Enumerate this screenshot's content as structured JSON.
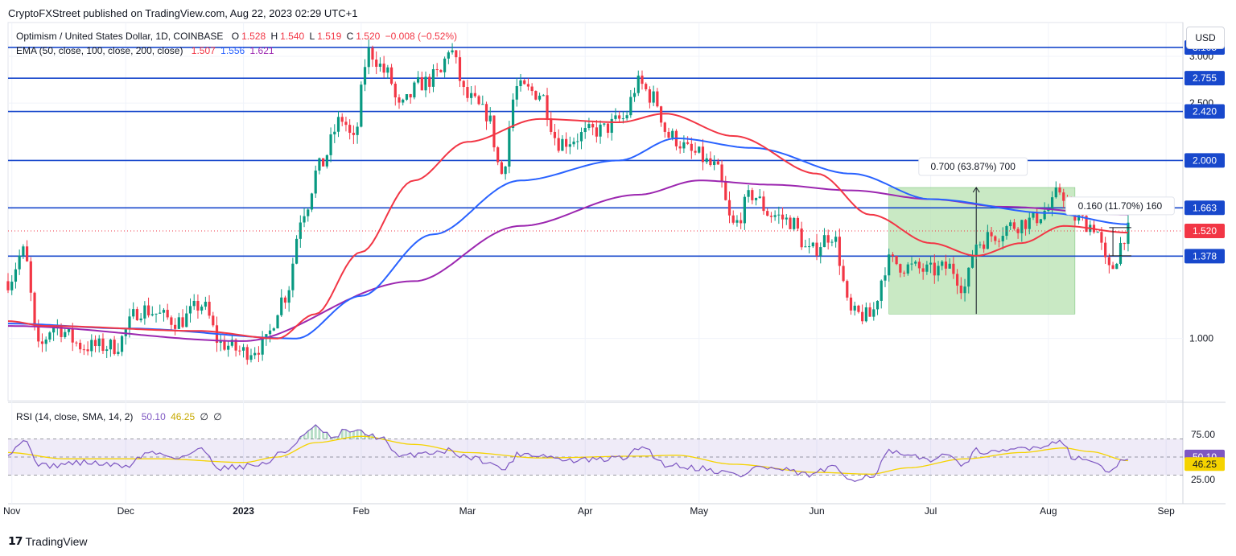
{
  "header": {
    "published": "CryptoFXStreet published on TradingView.com, Aug 22, 2023 02:29 UTC+1",
    "symbol": "Optimism / United States Dollar, 1D, COINBASE",
    "ohlc": {
      "o_label": "O",
      "o": "1.528",
      "h_label": "H",
      "h": "1.540",
      "l_label": "L",
      "l": "1.519",
      "c_label": "C",
      "c": "1.520",
      "change": "−0.008 (−0.52%)"
    },
    "ema_label": "EMA (50, close, 100, close, 200, close)",
    "ema_values": [
      "1.507",
      "1.556",
      "1.621"
    ],
    "rsi_label": "RSI (14, close, SMA, 14, 2)",
    "rsi_values": [
      "50.10",
      "46.25",
      "∅",
      "∅"
    ],
    "currency": "USD",
    "footer": "TradingView"
  },
  "colors": {
    "up": "#089981",
    "down": "#f23645",
    "ema50": "#f23645",
    "ema100": "#2962ff",
    "ema200": "#9c27b0",
    "level": "#1848cc",
    "rsi": "#7e57c2",
    "rsi_ma": "#f5d300",
    "measure_fill": "#b7e1b0"
  },
  "chart_data": [
    {
      "type": "candlestick",
      "title": "Optimism / United States Dollar, 1D, COINBASE",
      "x_range": [
        "2022-10-31",
        "2023-09-05"
      ],
      "x_ticks": [
        {
          "date": "2022-11-01",
          "label": "Nov"
        },
        {
          "date": "2022-12-01",
          "label": "Dec"
        },
        {
          "date": "2023-01-01",
          "label": "2023"
        },
        {
          "date": "2023-02-01",
          "label": "Feb"
        },
        {
          "date": "2023-03-01",
          "label": "Mar"
        },
        {
          "date": "2023-04-01",
          "label": "Apr"
        },
        {
          "date": "2023-05-01",
          "label": "May"
        },
        {
          "date": "2023-06-01",
          "label": "Jun"
        },
        {
          "date": "2023-07-01",
          "label": "Jul"
        },
        {
          "date": "2023-08-01",
          "label": "Aug"
        },
        {
          "date": "2023-09-01",
          "label": "Sep"
        }
      ],
      "y_scale": "log",
      "y_ticks": [
        "1.000",
        "2.500",
        "3.000"
      ],
      "horizontal_levels": [
        "3.105",
        "2.755",
        "2.420",
        "2.000",
        "1.663",
        "1.378"
      ],
      "last_price": "1.520",
      "close_anchors": [
        [
          "2022-10-31",
          1.25
        ],
        [
          "2022-11-04",
          1.4
        ],
        [
          "2022-11-08",
          0.96
        ],
        [
          "2022-11-12",
          1.05
        ],
        [
          "2022-11-20",
          0.97
        ],
        [
          "2022-11-28",
          0.97
        ],
        [
          "2022-12-05",
          1.12
        ],
        [
          "2022-12-15",
          1.07
        ],
        [
          "2022-12-21",
          1.14
        ],
        [
          "2022-12-26",
          0.98
        ],
        [
          "2023-01-01",
          0.95
        ],
        [
          "2023-01-06",
          0.97
        ],
        [
          "2023-01-12",
          1.18
        ],
        [
          "2023-01-17",
          1.65
        ],
        [
          "2023-01-21",
          1.95
        ],
        [
          "2023-01-27",
          2.35
        ],
        [
          "2023-01-30",
          2.15
        ],
        [
          "2023-02-03",
          3.05
        ],
        [
          "2023-02-08",
          2.8
        ],
        [
          "2023-02-11",
          2.45
        ],
        [
          "2023-02-17",
          2.7
        ],
        [
          "2023-02-22",
          2.8
        ],
        [
          "2023-02-24",
          3.1
        ],
        [
          "2023-03-01",
          2.55
        ],
        [
          "2023-03-06",
          2.4
        ],
        [
          "2023-03-10",
          1.9
        ],
        [
          "2023-03-14",
          2.65
        ],
        [
          "2023-03-20",
          2.6
        ],
        [
          "2023-03-25",
          2.15
        ],
        [
          "2023-04-05",
          2.25
        ],
        [
          "2023-04-11",
          2.35
        ],
        [
          "2023-04-15",
          2.7
        ],
        [
          "2023-04-19",
          2.55
        ],
        [
          "2023-04-23",
          2.2
        ],
        [
          "2023-04-30",
          2.05
        ],
        [
          "2023-05-05",
          1.95
        ],
        [
          "2023-05-10",
          1.55
        ],
        [
          "2023-05-15",
          1.75
        ],
        [
          "2023-05-20",
          1.62
        ],
        [
          "2023-05-25",
          1.58
        ],
        [
          "2023-05-30",
          1.4
        ],
        [
          "2023-06-05",
          1.5
        ],
        [
          "2023-06-10",
          1.1
        ],
        [
          "2023-06-15",
          1.09
        ],
        [
          "2023-06-20",
          1.35
        ],
        [
          "2023-06-25",
          1.32
        ],
        [
          "2023-07-01",
          1.3
        ],
        [
          "2023-07-06",
          1.32
        ],
        [
          "2023-07-10",
          1.22
        ],
        [
          "2023-07-13",
          1.45
        ],
        [
          "2023-07-18",
          1.5
        ],
        [
          "2023-07-22",
          1.55
        ],
        [
          "2023-07-27",
          1.58
        ],
        [
          "2023-08-01",
          1.65
        ],
        [
          "2023-08-04",
          1.78
        ],
        [
          "2023-08-08",
          1.6
        ],
        [
          "2023-08-13",
          1.55
        ],
        [
          "2023-08-17",
          1.3
        ],
        [
          "2023-08-22",
          1.52
        ]
      ],
      "ema50_anchors": [
        [
          "2022-10-31",
          1.07
        ],
        [
          "2022-11-10",
          1.05
        ],
        [
          "2022-12-20",
          1.03
        ],
        [
          "2023-01-10",
          1.0
        ],
        [
          "2023-01-20",
          1.1
        ],
        [
          "2023-02-01",
          1.4
        ],
        [
          "2023-02-15",
          1.85
        ],
        [
          "2023-03-01",
          2.15
        ],
        [
          "2023-03-20",
          2.35
        ],
        [
          "2023-04-10",
          2.32
        ],
        [
          "2023-04-22",
          2.4
        ],
        [
          "2023-05-10",
          2.2
        ],
        [
          "2023-06-01",
          1.9
        ],
        [
          "2023-06-15",
          1.62
        ],
        [
          "2023-07-01",
          1.45
        ],
        [
          "2023-07-13",
          1.38
        ],
        [
          "2023-07-25",
          1.45
        ],
        [
          "2023-08-05",
          1.55
        ],
        [
          "2023-08-22",
          1.51
        ]
      ],
      "ema100_anchors": [
        [
          "2022-10-31",
          1.06
        ],
        [
          "2022-12-01",
          1.04
        ],
        [
          "2023-01-15",
          1.0
        ],
        [
          "2023-02-01",
          1.18
        ],
        [
          "2023-02-20",
          1.5
        ],
        [
          "2023-03-15",
          1.85
        ],
        [
          "2023-04-10",
          2.0
        ],
        [
          "2023-04-25",
          2.18
        ],
        [
          "2023-05-15",
          2.1
        ],
        [
          "2023-06-10",
          1.9
        ],
        [
          "2023-07-01",
          1.72
        ],
        [
          "2023-08-01",
          1.63
        ],
        [
          "2023-08-22",
          1.56
        ]
      ],
      "ema200_anchors": [
        [
          "2022-10-31",
          1.05
        ],
        [
          "2023-01-01",
          0.99
        ],
        [
          "2023-02-15",
          1.25
        ],
        [
          "2023-03-15",
          1.55
        ],
        [
          "2023-04-15",
          1.75
        ],
        [
          "2023-05-01",
          1.85
        ],
        [
          "2023-05-20",
          1.82
        ],
        [
          "2023-06-10",
          1.78
        ],
        [
          "2023-07-01",
          1.72
        ],
        [
          "2023-07-20",
          1.67
        ],
        [
          "2023-08-22",
          1.62
        ]
      ],
      "measurements": [
        {
          "label": "0.700 (63.87%) 700",
          "from_date": "2023-06-20",
          "to_date": "2023-08-08",
          "low": 1.1,
          "high": 1.8,
          "measure_date": "2023-07-13"
        },
        {
          "label": "0.160 (11.70%) 160",
          "from_date": "2023-08-17",
          "to_date": "2023-08-22",
          "low": 1.38,
          "high": 1.54,
          "measure_date": "2023-08-18"
        }
      ]
    },
    {
      "type": "line",
      "title": "RSI (14, close, SMA, 14, 2)",
      "y_ticks": [
        "75.00",
        "25.00"
      ],
      "band": [
        30,
        70
      ],
      "mid": 50,
      "last_rsi": "50.10",
      "last_sma": "46.25",
      "rsi_anchors": [
        [
          "2022-10-31",
          55
        ],
        [
          "2022-11-04",
          68
        ],
        [
          "2022-11-09",
          40
        ],
        [
          "2022-11-20",
          44
        ],
        [
          "2022-12-01",
          40
        ],
        [
          "2022-12-07",
          55
        ],
        [
          "2022-12-15",
          50
        ],
        [
          "2022-12-21",
          58
        ],
        [
          "2022-12-26",
          38
        ],
        [
          "2023-01-01",
          40
        ],
        [
          "2023-01-06",
          42
        ],
        [
          "2023-01-12",
          56
        ],
        [
          "2023-01-17",
          74
        ],
        [
          "2023-01-20",
          83
        ],
        [
          "2023-01-25",
          70
        ],
        [
          "2023-01-28",
          80
        ],
        [
          "2023-02-01",
          77
        ],
        [
          "2023-02-06",
          72
        ],
        [
          "2023-02-11",
          50
        ],
        [
          "2023-02-18",
          55
        ],
        [
          "2023-02-24",
          57
        ],
        [
          "2023-03-01",
          50
        ],
        [
          "2023-03-06",
          46
        ],
        [
          "2023-03-10",
          36
        ],
        [
          "2023-03-15",
          54
        ],
        [
          "2023-03-21",
          52
        ],
        [
          "2023-03-27",
          46
        ],
        [
          "2023-04-05",
          47
        ],
        [
          "2023-04-12",
          50
        ],
        [
          "2023-04-16",
          62
        ],
        [
          "2023-04-22",
          42
        ],
        [
          "2023-05-01",
          38
        ],
        [
          "2023-05-08",
          33
        ],
        [
          "2023-05-12",
          29
        ],
        [
          "2023-05-16",
          39
        ],
        [
          "2023-05-22",
          36
        ],
        [
          "2023-05-30",
          30
        ],
        [
          "2023-06-05",
          38
        ],
        [
          "2023-06-10",
          26
        ],
        [
          "2023-06-16",
          30
        ],
        [
          "2023-06-20",
          56
        ],
        [
          "2023-06-25",
          50
        ],
        [
          "2023-07-01",
          48
        ],
        [
          "2023-07-07",
          52
        ],
        [
          "2023-07-10",
          40
        ],
        [
          "2023-07-13",
          57
        ],
        [
          "2023-07-18",
          54
        ],
        [
          "2023-07-25",
          60
        ],
        [
          "2023-08-01",
          63
        ],
        [
          "2023-08-04",
          70
        ],
        [
          "2023-08-08",
          48
        ],
        [
          "2023-08-13",
          46
        ],
        [
          "2023-08-17",
          32
        ],
        [
          "2023-08-22",
          50
        ]
      ],
      "sma_anchors": [
        [
          "2022-10-31",
          55
        ],
        [
          "2022-11-15",
          48
        ],
        [
          "2022-12-10",
          48
        ],
        [
          "2023-01-01",
          44
        ],
        [
          "2023-01-10",
          50
        ],
        [
          "2023-01-20",
          66
        ],
        [
          "2023-02-01",
          73
        ],
        [
          "2023-02-15",
          64
        ],
        [
          "2023-03-01",
          55
        ],
        [
          "2023-03-20",
          49
        ],
        [
          "2023-04-15",
          51
        ],
        [
          "2023-04-25",
          52
        ],
        [
          "2023-05-10",
          42
        ],
        [
          "2023-06-01",
          33
        ],
        [
          "2023-06-15",
          31
        ],
        [
          "2023-06-25",
          38
        ],
        [
          "2023-07-10",
          48
        ],
        [
          "2023-07-25",
          55
        ],
        [
          "2023-08-05",
          60
        ],
        [
          "2023-08-12",
          56
        ],
        [
          "2023-08-22",
          46
        ]
      ]
    }
  ]
}
